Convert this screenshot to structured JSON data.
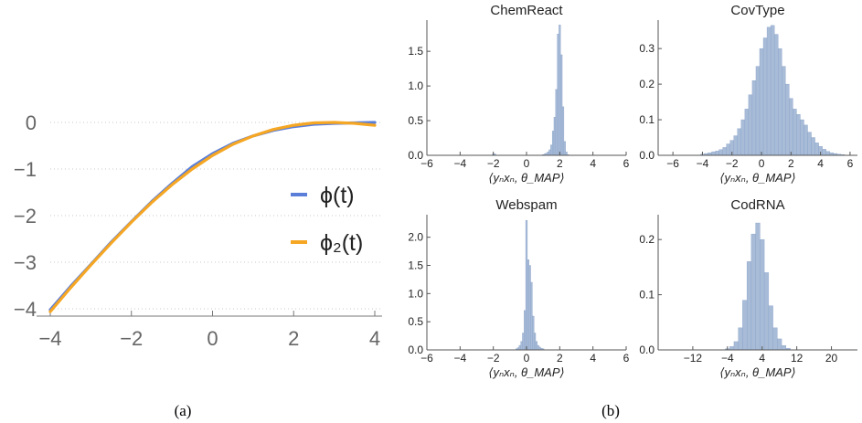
{
  "captions": {
    "a": "(a)",
    "b": "(b)"
  },
  "colors": {
    "phi": "#5b7fd9",
    "phi2": "#f5a623",
    "hist_fill": "#a8bcd8",
    "hist_edge": "#8aa2c8",
    "axis": "#555555",
    "grid": "#c8c8c8"
  },
  "chart_data": [
    {
      "type": "line",
      "title": "",
      "xlabel": "",
      "ylabel": "",
      "xlim": [
        -4,
        4
      ],
      "ylim": [
        -4.1,
        0.1
      ],
      "x_ticks": [
        "−4",
        "−2",
        "0",
        "2",
        "4"
      ],
      "y_ticks": [
        "0",
        "−1",
        "−2",
        "−3",
        "−4"
      ],
      "grid": "horizontal dotted",
      "legend_position": "right",
      "series": [
        {
          "name": "ϕ(t)",
          "x": [
            -4,
            -3.5,
            -3,
            -2.5,
            -2,
            -1.5,
            -1,
            -0.5,
            0,
            0.5,
            1,
            1.5,
            2,
            2.5,
            3,
            3.5,
            4
          ],
          "y": [
            -4.02,
            -3.52,
            -3.05,
            -2.57,
            -2.13,
            -1.7,
            -1.31,
            -0.95,
            -0.67,
            -0.45,
            -0.29,
            -0.17,
            -0.09,
            -0.04,
            -0.02,
            -0.01,
            0.0
          ]
        },
        {
          "name": "ϕ₂(t)",
          "x": [
            -4,
            -3.5,
            -3,
            -2.5,
            -2,
            -1.5,
            -1,
            -0.5,
            0,
            0.5,
            1,
            1.5,
            2,
            2.5,
            3,
            3.5,
            4
          ],
          "y": [
            -4.06,
            -3.55,
            -3.06,
            -2.59,
            -2.14,
            -1.72,
            -1.34,
            -1.0,
            -0.71,
            -0.47,
            -0.29,
            -0.15,
            -0.06,
            -0.01,
            0.0,
            -0.02,
            -0.06
          ]
        }
      ]
    },
    {
      "type": "bar",
      "title": "ChemReact",
      "xlabel": "⟨yₙxₙ, θ_MAP⟩",
      "xlim": [
        -6,
        6
      ],
      "ylim": [
        0,
        1.95
      ],
      "x_ticks": [
        "−6",
        "−4",
        "−2",
        "0",
        "2",
        "4",
        "6"
      ],
      "y_ticks": [
        "0.0",
        "0.5",
        "1.0",
        "1.5"
      ],
      "bin_width": 0.1,
      "bins": [
        {
          "x": -2.0,
          "y": 0.02
        },
        {
          "x": -1.9,
          "y": 0.02
        },
        {
          "x": 1.0,
          "y": 0.01
        },
        {
          "x": 1.1,
          "y": 0.02
        },
        {
          "x": 1.2,
          "y": 0.03
        },
        {
          "x": 1.3,
          "y": 0.05
        },
        {
          "x": 1.4,
          "y": 0.08
        },
        {
          "x": 1.5,
          "y": 0.15
        },
        {
          "x": 1.6,
          "y": 0.35
        },
        {
          "x": 1.7,
          "y": 0.55
        },
        {
          "x": 1.8,
          "y": 0.95
        },
        {
          "x": 1.9,
          "y": 1.75
        },
        {
          "x": 2.0,
          "y": 1.88
        },
        {
          "x": 2.1,
          "y": 1.45
        },
        {
          "x": 2.2,
          "y": 0.7
        },
        {
          "x": 2.3,
          "y": 0.2
        },
        {
          "x": 2.4,
          "y": 0.05
        },
        {
          "x": 2.5,
          "y": 0.01
        }
      ]
    },
    {
      "type": "bar",
      "title": "CovType",
      "xlabel": "⟨yₙxₙ, θ_MAP⟩",
      "xlim": [
        -7,
        6.5
      ],
      "ylim": [
        0,
        0.38
      ],
      "x_ticks": [
        "−6",
        "−4",
        "−2",
        "0",
        "2",
        "4",
        "6"
      ],
      "y_ticks": [
        "0.0",
        "0.1",
        "0.2",
        "0.3"
      ],
      "bin_width": 0.25,
      "bins": [
        {
          "x": -4.0,
          "y": 0.003
        },
        {
          "x": -3.75,
          "y": 0.005
        },
        {
          "x": -3.5,
          "y": 0.007
        },
        {
          "x": -3.25,
          "y": 0.01
        },
        {
          "x": -3.0,
          "y": 0.012
        },
        {
          "x": -2.75,
          "y": 0.016
        },
        {
          "x": -2.5,
          "y": 0.022
        },
        {
          "x": -2.25,
          "y": 0.032
        },
        {
          "x": -2.0,
          "y": 0.042
        },
        {
          "x": -1.75,
          "y": 0.055
        },
        {
          "x": -1.5,
          "y": 0.075
        },
        {
          "x": -1.25,
          "y": 0.1
        },
        {
          "x": -1.0,
          "y": 0.13
        },
        {
          "x": -0.75,
          "y": 0.17
        },
        {
          "x": -0.5,
          "y": 0.21
        },
        {
          "x": -0.25,
          "y": 0.25
        },
        {
          "x": 0.0,
          "y": 0.3
        },
        {
          "x": 0.25,
          "y": 0.33
        },
        {
          "x": 0.5,
          "y": 0.36
        },
        {
          "x": 0.75,
          "y": 0.365
        },
        {
          "x": 1.0,
          "y": 0.34
        },
        {
          "x": 1.25,
          "y": 0.3
        },
        {
          "x": 1.5,
          "y": 0.25
        },
        {
          "x": 1.75,
          "y": 0.2
        },
        {
          "x": 2.0,
          "y": 0.16
        },
        {
          "x": 2.25,
          "y": 0.13
        },
        {
          "x": 2.5,
          "y": 0.115
        },
        {
          "x": 2.75,
          "y": 0.1
        },
        {
          "x": 3.0,
          "y": 0.085
        },
        {
          "x": 3.25,
          "y": 0.065
        },
        {
          "x": 3.5,
          "y": 0.05
        },
        {
          "x": 3.75,
          "y": 0.035
        },
        {
          "x": 4.0,
          "y": 0.025
        },
        {
          "x": 4.25,
          "y": 0.017
        },
        {
          "x": 4.5,
          "y": 0.011
        },
        {
          "x": 4.75,
          "y": 0.007
        },
        {
          "x": 5.0,
          "y": 0.005
        },
        {
          "x": 5.25,
          "y": 0.003
        },
        {
          "x": 5.5,
          "y": 0.002
        }
      ]
    },
    {
      "type": "bar",
      "title": "Webspam",
      "xlabel": "⟨yₙxₙ, θ_MAP⟩",
      "xlim": [
        -6,
        6
      ],
      "ylim": [
        0,
        2.4
      ],
      "x_ticks": [
        "−6",
        "−4",
        "−2",
        "0",
        "2",
        "4",
        "6"
      ],
      "y_ticks": [
        "0.0",
        "0.5",
        "1.0",
        "1.5",
        "2.0"
      ],
      "bin_width": 0.1,
      "bins": [
        {
          "x": -0.6,
          "y": 0.02
        },
        {
          "x": -0.5,
          "y": 0.04
        },
        {
          "x": -0.4,
          "y": 0.08
        },
        {
          "x": -0.3,
          "y": 0.15
        },
        {
          "x": -0.2,
          "y": 0.3
        },
        {
          "x": -0.1,
          "y": 0.7
        },
        {
          "x": 0.0,
          "y": 2.3
        },
        {
          "x": 0.1,
          "y": 1.6
        },
        {
          "x": 0.2,
          "y": 1.5
        },
        {
          "x": 0.3,
          "y": 1.2
        },
        {
          "x": 0.4,
          "y": 0.6
        },
        {
          "x": 0.5,
          "y": 0.3
        },
        {
          "x": 0.6,
          "y": 0.15
        },
        {
          "x": 0.7,
          "y": 0.08
        },
        {
          "x": 0.8,
          "y": 0.05
        },
        {
          "x": 0.9,
          "y": 0.03
        },
        {
          "x": 1.0,
          "y": 0.02
        }
      ]
    },
    {
      "type": "bar",
      "title": "CodRNA",
      "xlabel": "⟨yₙxₙ, θ_MAP⟩",
      "xlim": [
        -20,
        26
      ],
      "ylim": [
        0,
        0.245
      ],
      "x_ticks": [
        "−12",
        "−4",
        "4",
        "12",
        "20"
      ],
      "y_ticks": [
        "0.0",
        "0.1",
        "0.2"
      ],
      "bin_width": 1,
      "bins": [
        {
          "x": -4,
          "y": 0.002
        },
        {
          "x": -3,
          "y": 0.006
        },
        {
          "x": -2,
          "y": 0.015
        },
        {
          "x": -1,
          "y": 0.04
        },
        {
          "x": 0,
          "y": 0.09
        },
        {
          "x": 1,
          "y": 0.16
        },
        {
          "x": 2,
          "y": 0.21
        },
        {
          "x": 3,
          "y": 0.23
        },
        {
          "x": 4,
          "y": 0.2
        },
        {
          "x": 5,
          "y": 0.14
        },
        {
          "x": 6,
          "y": 0.08
        },
        {
          "x": 7,
          "y": 0.04
        },
        {
          "x": 8,
          "y": 0.02
        },
        {
          "x": 9,
          "y": 0.008
        },
        {
          "x": 10,
          "y": 0.003
        }
      ]
    }
  ]
}
